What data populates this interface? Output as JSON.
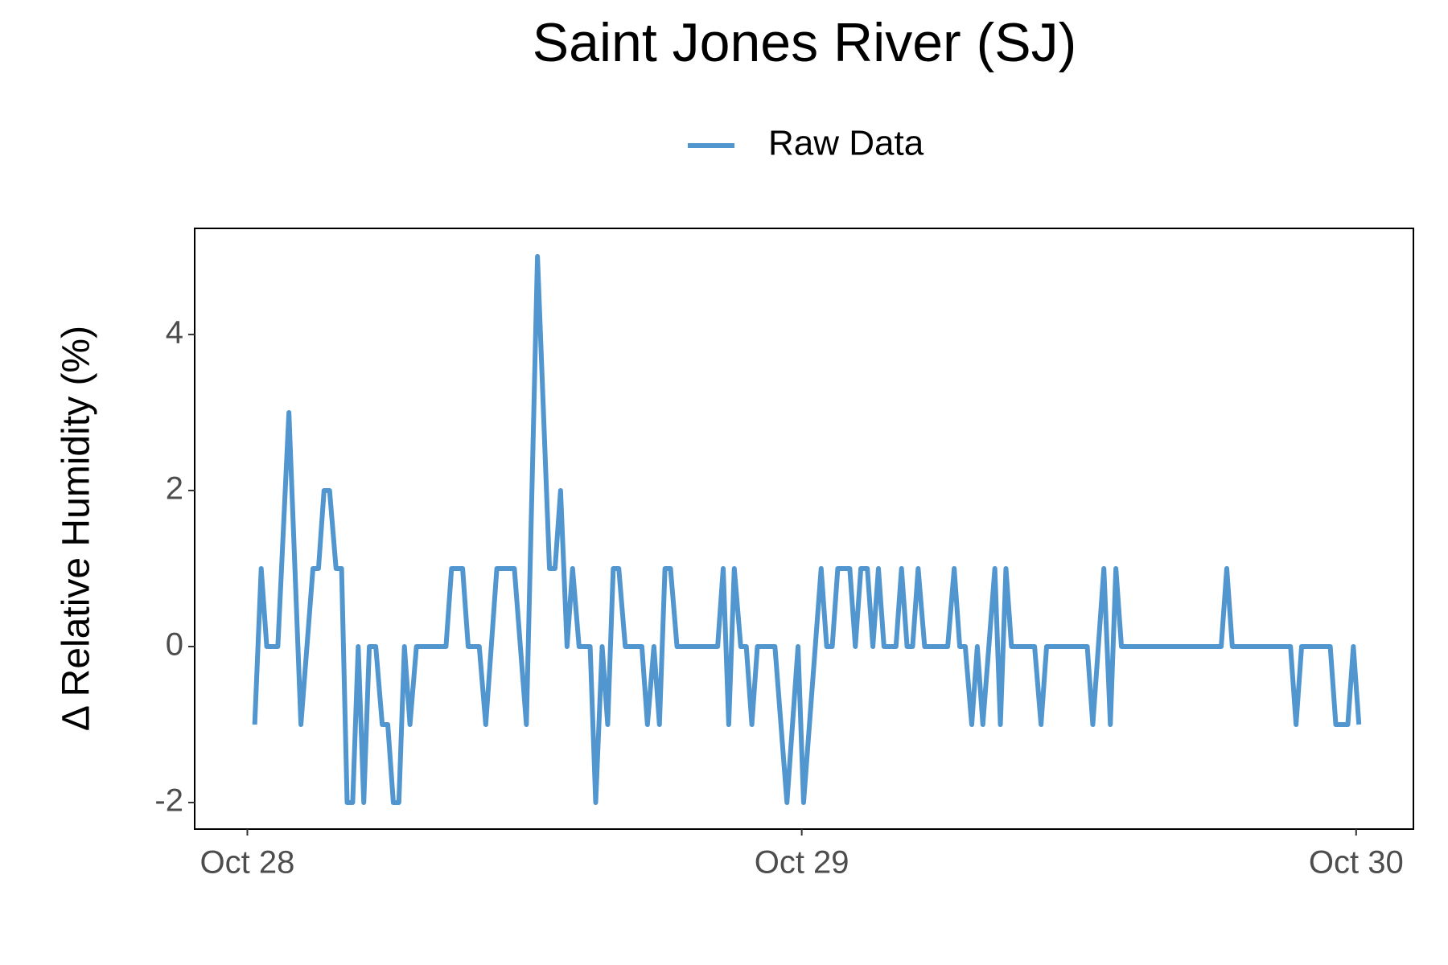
{
  "chart_data": {
    "type": "line",
    "title": "Saint Jones River (SJ)",
    "y_label": "Δ Relative Humidity (%)",
    "x": [
      0.32,
      0.6,
      0.84,
      1.32,
      1.8,
      2.32,
      2.84,
      3.08,
      3.32,
      3.56,
      3.84,
      4.08,
      4.32,
      4.56,
      4.8,
      5.04,
      5.28,
      5.56,
      5.84,
      6.08,
      6.32,
      6.56,
      6.8,
      7.04,
      7.32,
      8.6,
      8.84,
      9.32,
      9.56,
      10.04,
      10.32,
      10.8,
      11.56,
      12.08,
      12.56,
      13.08,
      13.32,
      13.56,
      13.84,
      14.08,
      14.36,
      14.84,
      15.08,
      15.36,
      15.6,
      15.84,
      16.08,
      16.36,
      17.08,
      17.32,
      17.6,
      17.84,
      18.08,
      18.32,
      18.6,
      20.36,
      20.6,
      20.84,
      21.08,
      21.36,
      21.6,
      21.84,
      22.08,
      22.84,
      23.36,
      23.84,
      24.08,
      24.84,
      25.08,
      25.32,
      25.56,
      26.08,
      26.32,
      26.56,
      26.84,
      27.08,
      27.32,
      27.56,
      28.08,
      28.32,
      28.56,
      28.8,
      29.04,
      29.32,
      30.32,
      30.6,
      30.84,
      31.08,
      31.36,
      31.6,
      31.84,
      32.36,
      32.6,
      32.84,
      33.08,
      34.08,
      34.36,
      34.6,
      36.36,
      36.6,
      37.08,
      37.36,
      37.6,
      37.84,
      42.16,
      42.4,
      42.64,
      45.16,
      45.4,
      45.64,
      46.88,
      47.12,
      47.64,
      47.88,
      48.12
    ],
    "series": [
      {
        "name": "Raw Data",
        "color": "#5196cf",
        "values": [
          -1,
          1,
          0,
          0,
          3,
          -1,
          1,
          1,
          2,
          2,
          1,
          1,
          -2,
          -2,
          0,
          -2,
          0,
          0,
          -1,
          -1,
          -2,
          -2,
          0,
          -1,
          0,
          0,
          1,
          1,
          0,
          0,
          -1,
          1,
          1,
          -1,
          5,
          1,
          1,
          2,
          0,
          1,
          0,
          0,
          -2,
          0,
          -1,
          1,
          1,
          0,
          0,
          -1,
          0,
          -1,
          1,
          1,
          0,
          0,
          1,
          -1,
          1,
          0,
          0,
          -1,
          0,
          0,
          -2,
          0,
          -2,
          1,
          0,
          0,
          1,
          1,
          0,
          1,
          1,
          0,
          1,
          0,
          0,
          1,
          0,
          0,
          1,
          0,
          0,
          1,
          0,
          0,
          -1,
          0,
          -1,
          1,
          -1,
          1,
          0,
          0,
          -1,
          0,
          0,
          -1,
          1,
          -1,
          1,
          0,
          0,
          1,
          0,
          0,
          -1,
          0,
          0,
          -1,
          -1,
          0,
          -1
        ]
      }
    ],
    "xlim": [
      -2.28,
      50.48
    ],
    "ylim": [
      -2.34,
      5.36
    ],
    "xticks": [
      {
        "value": 0,
        "label": "Oct 28"
      },
      {
        "value": 24,
        "label": "Oct 29"
      },
      {
        "value": 48,
        "label": "Oct 30"
      }
    ],
    "yticks": [
      -2,
      0,
      2,
      4
    ],
    "legend": "top",
    "grid": false
  }
}
